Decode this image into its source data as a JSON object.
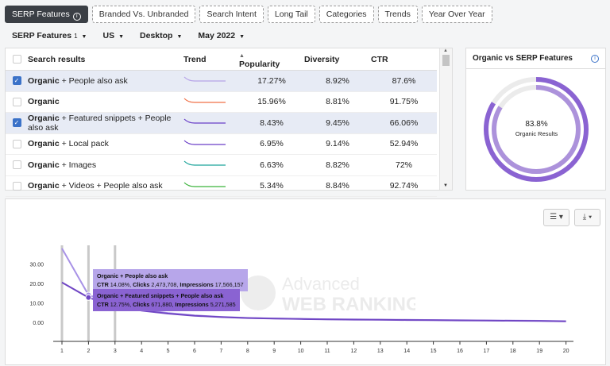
{
  "tabs": [
    "SERP Features",
    "Branded Vs. Unbranded",
    "Search Intent",
    "Long Tail",
    "Categories",
    "Trends",
    "Year Over Year"
  ],
  "filters": {
    "feature": "SERP Features",
    "feature_count": "1",
    "country": "US",
    "device": "Desktop",
    "date": "May 2022"
  },
  "table": {
    "headers": [
      "Search results",
      "Trend",
      "Popularity",
      "Diversity",
      "CTR"
    ],
    "rows": [
      {
        "checked": true,
        "bold": "Organic",
        "rest": " + People also ask",
        "popularity": "17.27%",
        "diversity": "8.92%",
        "ctr": "87.6%",
        "trend_color": "#b5a2e8"
      },
      {
        "checked": false,
        "bold": "Organic",
        "rest": "",
        "popularity": "15.96%",
        "diversity": "8.81%",
        "ctr": "91.75%",
        "trend_color": "#f07048"
      },
      {
        "checked": true,
        "bold": "Organic",
        "rest": " + Featured snippets + People also ask",
        "popularity": "8.43%",
        "diversity": "9.45%",
        "ctr": "66.06%",
        "trend_color": "#6a3fc8"
      },
      {
        "checked": false,
        "bold": "Organic",
        "rest": " + Local pack",
        "popularity": "6.95%",
        "diversity": "9.14%",
        "ctr": "52.94%",
        "trend_color": "#6a3fc8"
      },
      {
        "checked": false,
        "bold": "Organic",
        "rest": " + Images",
        "popularity": "6.63%",
        "diversity": "8.82%",
        "ctr": "72%",
        "trend_color": "#1aa39a"
      },
      {
        "checked": false,
        "bold": "Organic",
        "rest": " + Videos + People also ask",
        "popularity": "5.34%",
        "diversity": "8.84%",
        "ctr": "92.74%",
        "trend_color": "#3bb33b"
      }
    ]
  },
  "donut": {
    "title": "Organic vs SERP Features",
    "value": "83.8%",
    "label": "Organic Results",
    "fraction": 0.838,
    "color": "#8a63d2"
  },
  "chart": {
    "controls": {
      "filter_icon": "sliders-icon",
      "download_icon": "download-icon"
    },
    "watermark": {
      "line1": "Advanced",
      "line2": "WEB RANKING"
    },
    "tooltips": [
      {
        "title": "Organic + People also ask",
        "ctr_label": "CTR",
        "ctr": "14.08%",
        "clicks_label": "Clicks",
        "clicks": "2,473,708",
        "impr_label": "Impressions",
        "impr": "17,566,157"
      },
      {
        "title": "Organic + Featured snippets + People also ask",
        "ctr_label": "CTR",
        "ctr": "12.75%",
        "clicks_label": "Clicks",
        "clicks": "671,880",
        "impr_label": "Impressions",
        "impr": "5,271,585"
      }
    ]
  },
  "chart_data": {
    "type": "line",
    "x": [
      1,
      2,
      3,
      4,
      5,
      6,
      7,
      8,
      9,
      10,
      11,
      12,
      13,
      14,
      15,
      16,
      17,
      18,
      19,
      20
    ],
    "yticks": [
      "30.00",
      "20.00",
      "10.00",
      "0.00"
    ],
    "ylim": [
      -8,
      40
    ],
    "highlight_x": [
      1,
      2,
      3
    ],
    "series": [
      {
        "name": "Organic + People also ask",
        "color": "#a892e6",
        "values": [
          38,
          14.08,
          9.2,
          6.5,
          4.8,
          3.6,
          2.8,
          2.3,
          2.0,
          1.8,
          1.6,
          1.5,
          1.4,
          1.3,
          1.2,
          1.1,
          1.0,
          0.9,
          0.8,
          0.6
        ]
      },
      {
        "name": "Organic + Featured snippets + People also ask",
        "color": "#7046c4",
        "values": [
          20.5,
          12.75,
          8.3,
          6.0,
          4.5,
          3.4,
          2.7,
          2.2,
          1.9,
          1.7,
          1.5,
          1.4,
          1.3,
          1.2,
          1.1,
          1.0,
          0.9,
          0.8,
          0.7,
          0.5
        ]
      }
    ]
  }
}
